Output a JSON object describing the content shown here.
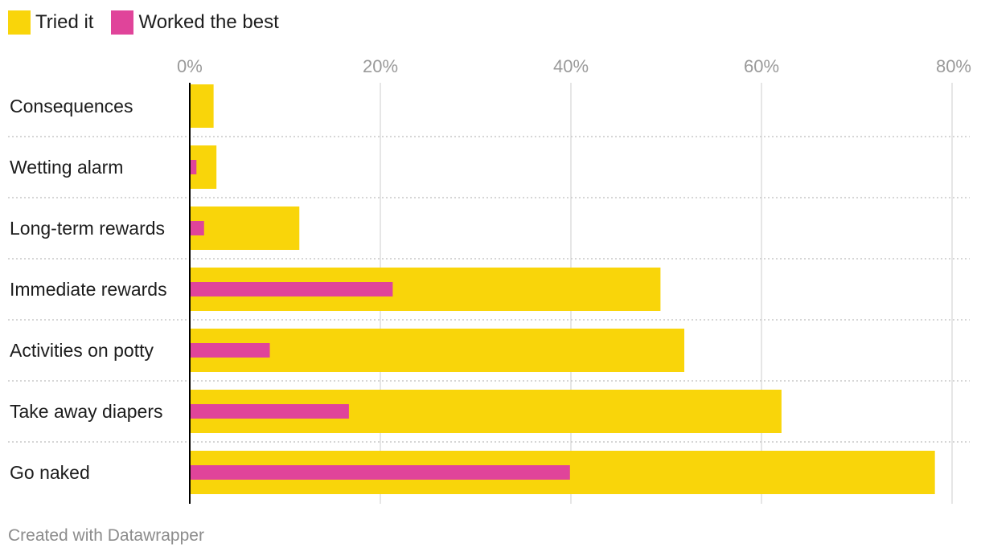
{
  "colors": {
    "tried": "#f9d50a",
    "worked": "#e0449a",
    "grid": "#dddddd",
    "separator": "#c8c8c8",
    "axis": "#000000"
  },
  "legend": {
    "tried_label": "Tried it",
    "worked_label": "Worked the best"
  },
  "footer": {
    "credit": "Created with Datawrapper"
  },
  "chart_data": {
    "type": "bar",
    "orientation": "horizontal",
    "title": "",
    "xlabel": "",
    "ylabel": "",
    "xlim": [
      0,
      80
    ],
    "x_ticks": [
      0,
      20,
      40,
      60,
      80
    ],
    "x_tick_labels": [
      "0%",
      "20%",
      "40%",
      "60%",
      "80%"
    ],
    "grid": true,
    "legend_position": "top-left",
    "categories": [
      "Consequences",
      "Wetting alarm",
      "Long-term rewards",
      "Immediate rewards",
      "Activities on potty",
      "Take away diapers",
      "Go naked"
    ],
    "series": [
      {
        "name": "Tried it",
        "values": [
          2.5,
          2.8,
          11.5,
          49.4,
          51.9,
          62.1,
          78.2
        ]
      },
      {
        "name": "Worked the best",
        "values": [
          0,
          0.7,
          1.5,
          21.3,
          8.4,
          16.7,
          39.9
        ]
      }
    ]
  }
}
